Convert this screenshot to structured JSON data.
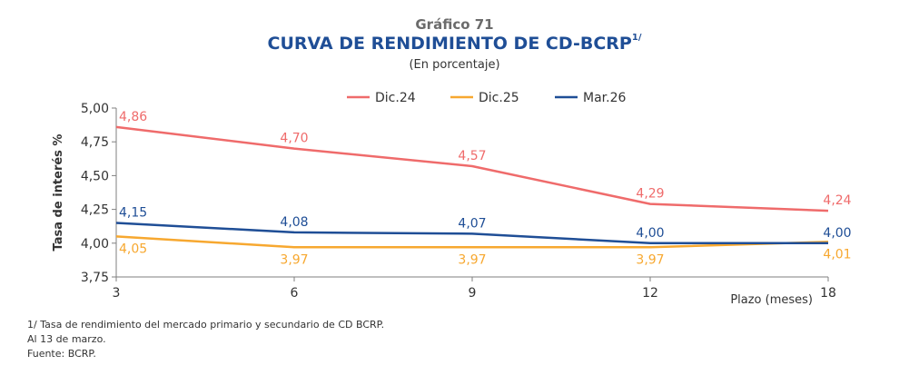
{
  "header": {
    "chart_number": "Gráfico 71",
    "title": "CURVA DE RENDIMIENTO DE CD-BCRP",
    "title_superscript": "1/",
    "subtitle": "(En porcentaje)"
  },
  "notes": [
    "1/  Tasa de rendimiento del mercado primario y secundario de CD BCRP.",
    "Al 13 de marzo.",
    "Fuente: BCRP."
  ],
  "chart_data": {
    "type": "line",
    "title": "CURVA DE RENDIMIENTO DE CD-BCRP",
    "subtitle": "(En porcentaje)",
    "xlabel": "Plazo (meses)",
    "ylabel": "Tasa de interés %",
    "categories": [
      "3",
      "6",
      "9",
      "12",
      "18"
    ],
    "ylim": [
      3.75,
      5.0
    ],
    "yticks": [
      "3,75",
      "4,00",
      "4,25",
      "4,50",
      "4,75",
      "5,00"
    ],
    "ytick_values": [
      3.75,
      4.0,
      4.25,
      4.5,
      4.75,
      5.0
    ],
    "grid": false,
    "legend_position": "top-center",
    "series": [
      {
        "name": "Dic.24",
        "color": "#ef6b6b",
        "values": [
          4.86,
          4.7,
          4.57,
          4.29,
          4.24
        ],
        "labels": [
          "4,86",
          "4,70",
          "4,57",
          "4,29",
          "4,24"
        ],
        "label_side": "above"
      },
      {
        "name": "Dic.25",
        "color": "#f7a830",
        "values": [
          4.05,
          3.97,
          3.97,
          3.97,
          4.01
        ],
        "labels": [
          "4,05",
          "3,97",
          "3,97",
          "3,97",
          "4,01"
        ],
        "label_side": "below"
      },
      {
        "name": "Mar.26",
        "color": "#1f4e96",
        "values": [
          4.15,
          4.08,
          4.07,
          4.0,
          4.0
        ],
        "labels": [
          "4,15",
          "4,08",
          "4,07",
          "4,00",
          "4,00"
        ],
        "label_side": "above"
      }
    ]
  }
}
